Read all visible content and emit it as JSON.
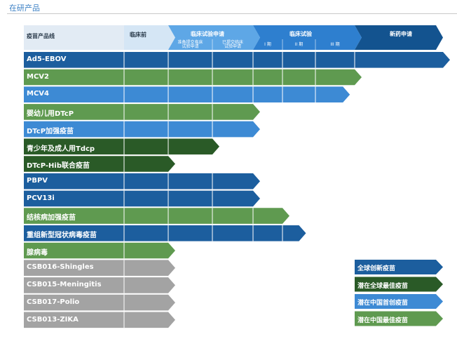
{
  "page": {
    "section_title": "在研产品"
  },
  "header": {
    "product_line": "疫苗产品线",
    "stages": [
      {
        "label": "临床前",
        "color": "#d5e6f5"
      },
      {
        "label": "临床试验申请",
        "color": "#5ea7e6"
      },
      {
        "label": "临床试验",
        "color": "#2e7fcf"
      },
      {
        "label": "新药申请",
        "color": "#13538f"
      }
    ],
    "sub_labels": [
      "准备提交临床\n试验申请",
      "已提交临床\n试验申请",
      "I 期",
      "II 期",
      "III 期"
    ]
  },
  "colors": {
    "global_innovative": "#1c5e9e",
    "global_best": "#2a5a27",
    "china_first": "#3d8ad4",
    "china_best": "#5f9a50",
    "not_started": "#a3a3a3",
    "grid_line": "#ffffff"
  },
  "products": [
    {
      "name": "Ad5-EBOV",
      "category": "global_innovative",
      "progress_stage": 8
    },
    {
      "name": "MCV2",
      "category": "china_best",
      "progress_stage": 7
    },
    {
      "name": "MCV4",
      "category": "china_first",
      "progress_stage": 6.7
    },
    {
      "name": "婴幼儿用DTcP",
      "category": "china_best",
      "progress_stage": 4
    },
    {
      "name": "DTcP加强疫苗",
      "category": "china_first",
      "progress_stage": 4
    },
    {
      "name": "青少年及成人用Tdcp",
      "category": "global_best",
      "progress_stage": 3
    },
    {
      "name": "DTcP-Hib联合疫苗",
      "category": "global_best",
      "progress_stage": 2
    },
    {
      "name": "PBPV",
      "category": "global_innovative",
      "progress_stage": 4
    },
    {
      "name": "PCV13i",
      "category": "global_innovative",
      "progress_stage": 4
    },
    {
      "name": "结核病加强疫苗",
      "category": "china_best",
      "progress_stage": 5
    },
    {
      "name": "重组新型冠状病毒疫苗",
      "category": "global_innovative",
      "progress_stage": 5.5
    },
    {
      "name": "腺病毒",
      "category": "china_best",
      "progress_stage": 2
    },
    {
      "name": "CSB016-Shingles",
      "category": "not_started",
      "progress_stage": 2
    },
    {
      "name": "CSB015-Meningitis",
      "category": "not_started",
      "progress_stage": 2
    },
    {
      "name": "CSB017-Polio",
      "category": "not_started",
      "progress_stage": 2
    },
    {
      "name": "CSB013-ZIKA",
      "category": "not_started",
      "progress_stage": 2
    }
  ],
  "legend": [
    {
      "label": "全球创新疫苗",
      "category": "global_innovative"
    },
    {
      "label": "潜在全球最佳疫苗",
      "category": "global_best"
    },
    {
      "label": "潜在中国首创疫苗",
      "category": "china_first"
    },
    {
      "label": "潜在中国最佳疫苗",
      "category": "china_best"
    }
  ]
}
